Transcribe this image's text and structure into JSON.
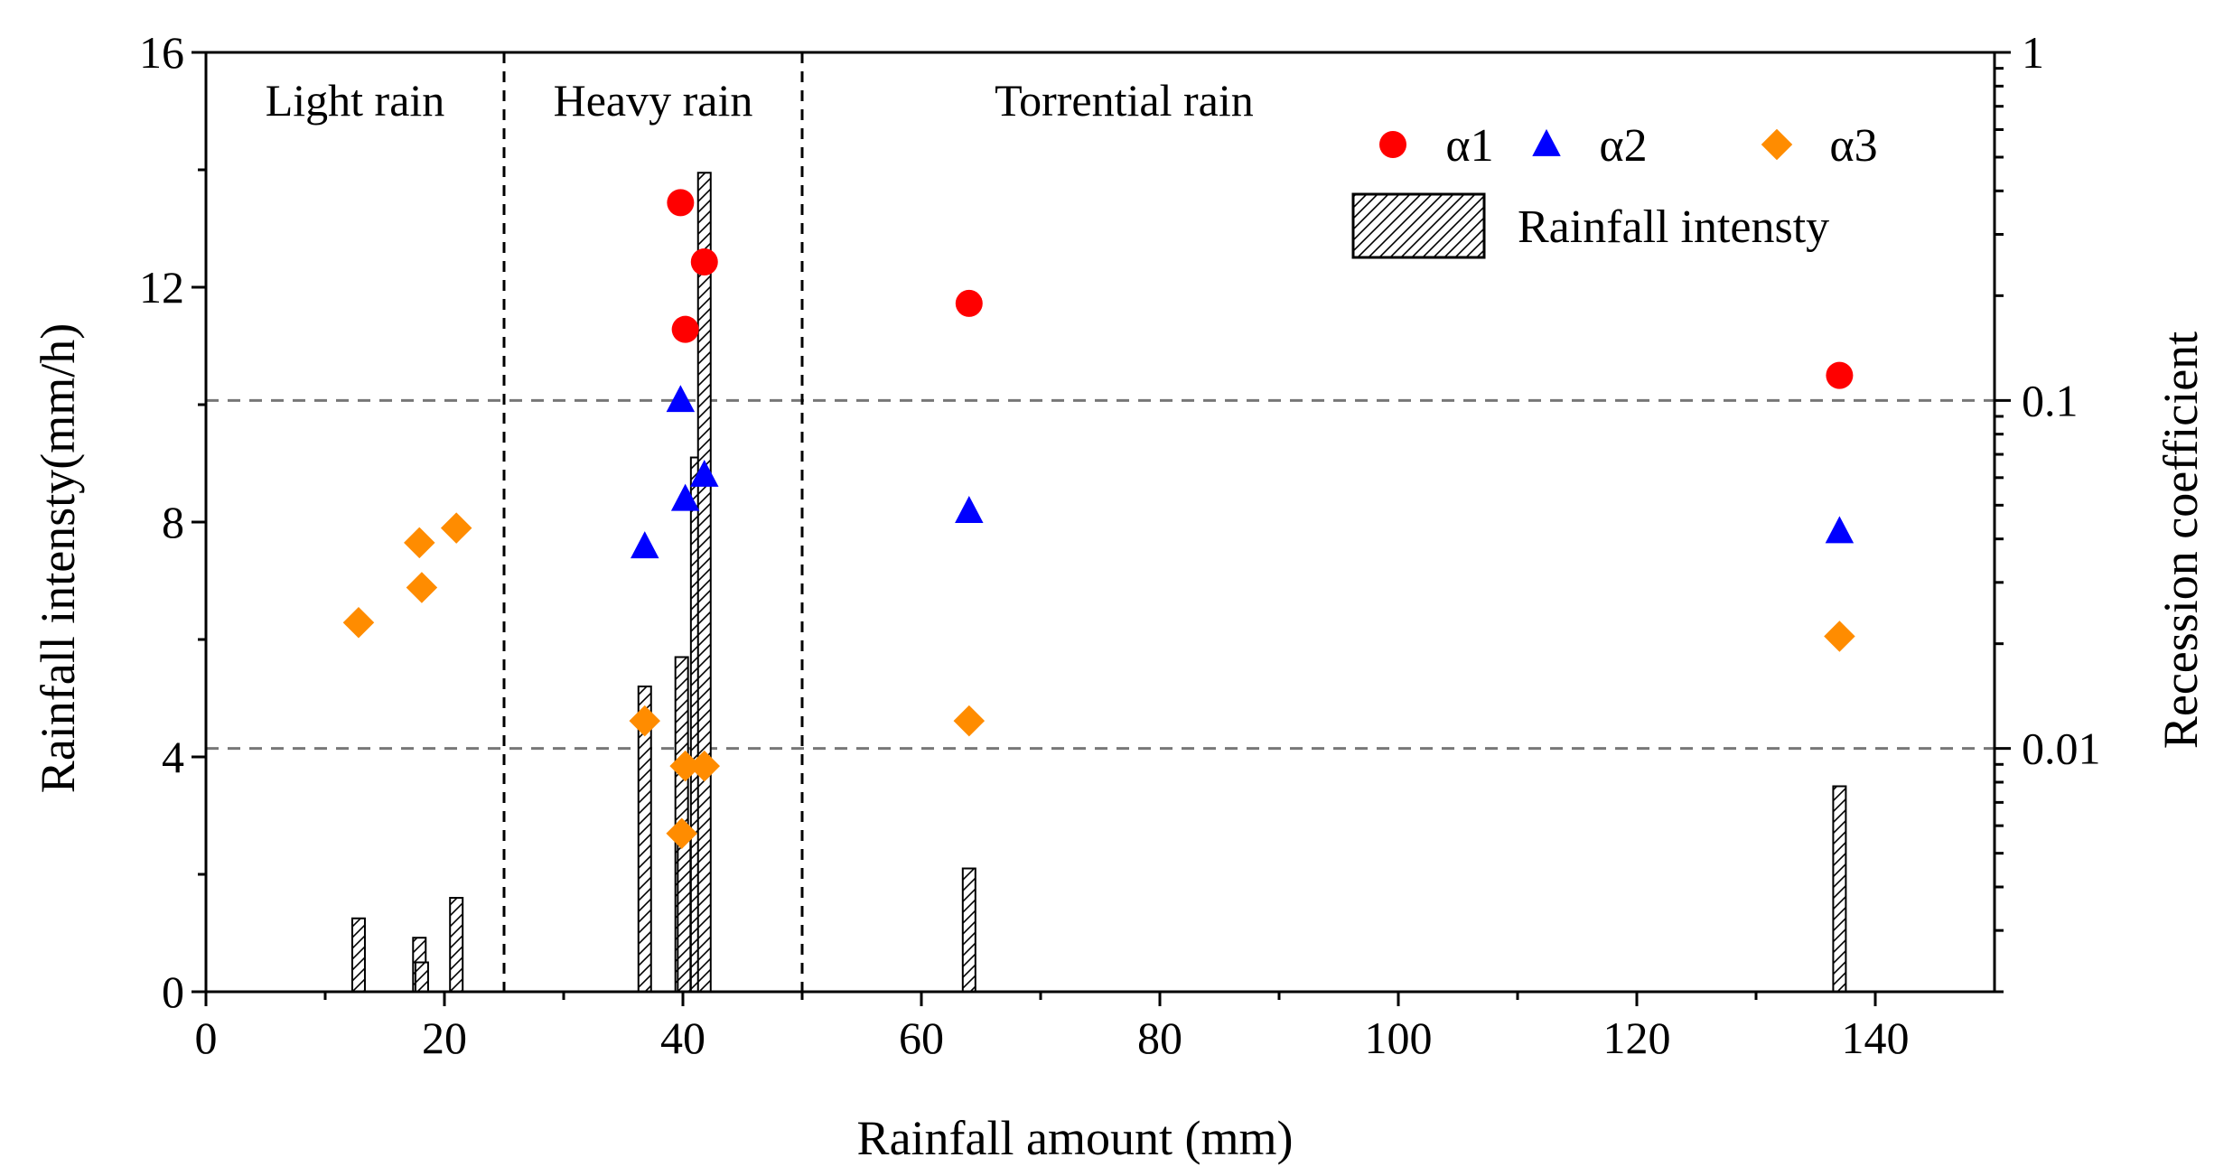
{
  "chart_data": {
    "type": "bar+scatter",
    "xlabel": "Rainfall amount (mm)",
    "ylabel_left": "Rainfall intensty(mm/h)",
    "ylabel_right": "Recession coefficient",
    "xlim": [
      0,
      150
    ],
    "ylim_left": [
      0,
      16
    ],
    "ylim_right": [
      0.002,
      1
    ],
    "right_axis_scale": "log",
    "x_ticks": [
      "0",
      "20",
      "40",
      "60",
      "80",
      "100",
      "120",
      "140"
    ],
    "y_left_ticks": [
      "0",
      "4",
      "8",
      "12",
      "16"
    ],
    "y_right_ticks": [
      "0.01",
      "0.1",
      "1"
    ],
    "regions": [
      {
        "label": "Light rain",
        "x_range": [
          0,
          25
        ]
      },
      {
        "label": "Heavy rain",
        "x_range": [
          25,
          50
        ]
      },
      {
        "label": "Torrential rain",
        "x_range": [
          50,
          150
        ]
      }
    ],
    "region_dividers_x": [
      25,
      50
    ],
    "reference_lines_right": [
      0.1,
      0.01
    ],
    "bars": {
      "name": "Rainfall intensty",
      "x": [
        12.8,
        17.9,
        18.1,
        21,
        36.8,
        39.9,
        40.1,
        41.2,
        41.8,
        64,
        137
      ],
      "values": [
        1.25,
        0.92,
        0.5,
        1.6,
        5.2,
        5.7,
        2.7,
        9.1,
        13.95,
        2.1,
        3.5
      ]
    },
    "series": [
      {
        "name": "α1",
        "marker": "circle",
        "color": "#ff0000",
        "x": [
          39.8,
          40.2,
          41.8,
          64,
          137
        ],
        "values": [
          0.37,
          0.16,
          0.25,
          0.19,
          0.118
        ]
      },
      {
        "name": "α2",
        "marker": "triangle",
        "color": "#0000ff",
        "x": [
          36.8,
          39.8,
          40.2,
          41.8,
          64,
          137
        ],
        "values": [
          0.038,
          0.1,
          0.052,
          0.061,
          0.048,
          0.042
        ]
      },
      {
        "name": "α3",
        "marker": "diamond",
        "color": "#ff8c00",
        "x": [
          12.8,
          17.9,
          18.1,
          21,
          36.8,
          39.9,
          40.2,
          41.8,
          64,
          137
        ],
        "values": [
          0.023,
          0.039,
          0.029,
          0.043,
          0.012,
          0.0057,
          0.0089,
          0.0089,
          0.012,
          0.021
        ]
      }
    ],
    "legend_position": "top-right"
  }
}
